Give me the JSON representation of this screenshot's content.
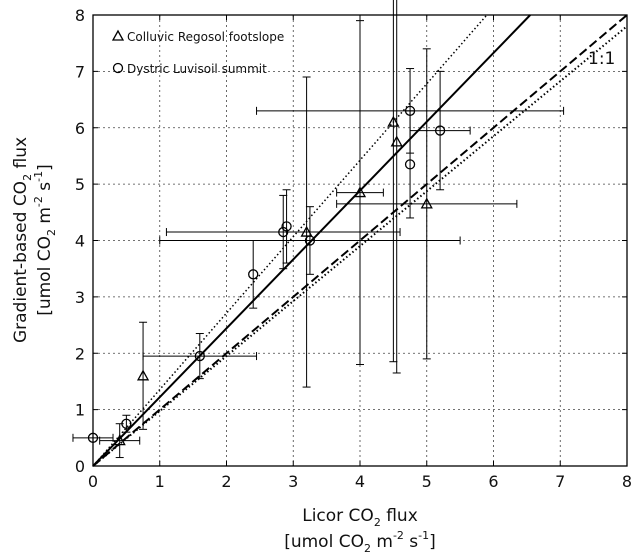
{
  "chart_data": {
    "type": "scatter",
    "xlim": [
      0,
      8
    ],
    "ylim": [
      0,
      8
    ],
    "x_ticks": [
      "0",
      "1",
      "2",
      "3",
      "4",
      "5",
      "6",
      "7",
      "8"
    ],
    "y_ticks": [
      "0",
      "1",
      "2",
      "3",
      "4",
      "5",
      "6",
      "7",
      "8"
    ],
    "grid": true,
    "legend_position": "top-left",
    "xlabel": {
      "line1_pre": "Licor CO",
      "line1_sub": "2",
      "line1_post": " flux",
      "line2_pre": "[umol CO",
      "line2_sub": "2",
      "line2_mid": " m",
      "line2_sup1": "-2",
      "line2_s": " s",
      "line2_sup2": "-1",
      "line2_post": "]"
    },
    "ylabel": {
      "line1_pre": "Gradient-based CO",
      "line1_sub": "2",
      "line1_post": " flux",
      "line2_pre": "[umol CO",
      "line2_sub": "2",
      "line2_mid": " m",
      "line2_sup1": "-2",
      "line2_s": " s",
      "line2_sup2": "-1",
      "line2_post": "]"
    },
    "reference_label": "1:1",
    "series": [
      {
        "name": "Colluvic Regosol footslope",
        "marker": "triangle",
        "points": [
          {
            "x": 0.4,
            "y": 0.45,
            "xerr": 0.3,
            "yerr": 0.3
          },
          {
            "x": 0.75,
            "y": 1.6,
            "xerr": 0.0,
            "yerr": 0.95
          },
          {
            "x": 3.2,
            "y": 4.15,
            "xerr": 0.0,
            "yerr": 2.75
          },
          {
            "x": 4.0,
            "y": 4.85,
            "xerr": 0.35,
            "yerr": 3.05
          },
          {
            "x": 4.5,
            "y": 6.1,
            "xerr": 0.0,
            "yerr": 4.25
          },
          {
            "x": 4.55,
            "y": 5.75,
            "xerr": 0.0,
            "yerr": 4.1
          },
          {
            "x": 5.0,
            "y": 4.65,
            "xerr": 1.35,
            "yerr": 2.75
          }
        ]
      },
      {
        "name": "Dystric Luvisoil summit",
        "marker": "circle",
        "points": [
          {
            "x": 0.0,
            "y": 0.5,
            "xerr": 0.3,
            "yerr": 0.0
          },
          {
            "x": 0.5,
            "y": 0.75,
            "xerr": 0.0,
            "yerr": 0.15
          },
          {
            "x": 1.6,
            "y": 1.95,
            "xerr": 0.85,
            "yerr": 0.4
          },
          {
            "x": 2.4,
            "y": 3.4,
            "xerr": 0.0,
            "yerr": 0.6
          },
          {
            "x": 2.85,
            "y": 4.15,
            "xerr": 1.75,
            "yerr": 0.65
          },
          {
            "x": 2.9,
            "y": 4.25,
            "xerr": 0.0,
            "yerr": 0.65
          },
          {
            "x": 3.25,
            "y": 4.0,
            "xerr": 2.25,
            "yerr": 0.6
          },
          {
            "x": 4.75,
            "y": 6.3,
            "xerr": 2.3,
            "yerr": 0.75
          },
          {
            "x": 4.75,
            "y": 5.35,
            "xerr": 0.0,
            "yerr": 0.95
          },
          {
            "x": 5.2,
            "y": 5.95,
            "xerr": 0.45,
            "yerr": 1.05
          }
        ]
      }
    ],
    "lines": [
      {
        "style": "solid",
        "width": 2,
        "x": [
          0,
          6.55
        ],
        "y": [
          0,
          8
        ]
      },
      {
        "style": "dotted",
        "width": 1.5,
        "x": [
          0,
          5.9
        ],
        "y": [
          0,
          8
        ]
      },
      {
        "style": "dashed",
        "width": 2,
        "x": [
          0,
          8
        ],
        "y": [
          0,
          8
        ]
      },
      {
        "style": "dotted",
        "width": 2,
        "x": [
          0,
          8
        ],
        "y": [
          0,
          7.8
        ]
      }
    ]
  }
}
